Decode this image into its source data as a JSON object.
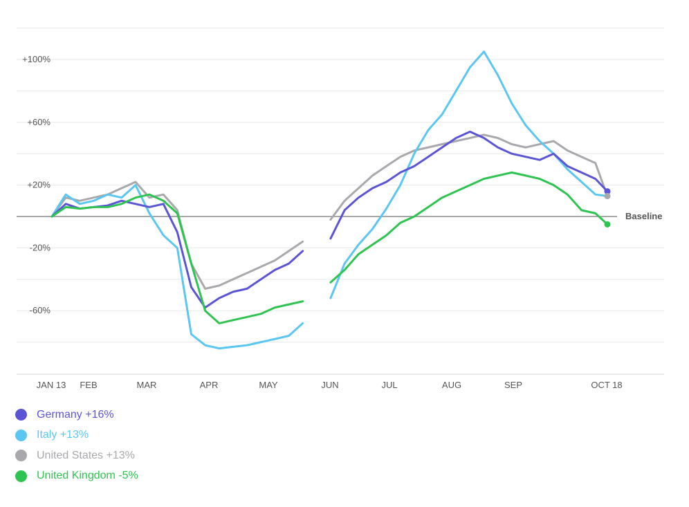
{
  "chart_data": {
    "type": "line",
    "x_tick_labels": [
      "JAN 13",
      "FEB",
      "MAR",
      "APR",
      "MAY",
      "JUN",
      "JUL",
      "AUG",
      "SEP",
      "OCT 18"
    ],
    "y_ticks": [
      {
        "value": 100,
        "label": "+100%"
      },
      {
        "value": 60,
        "label": "+60%"
      },
      {
        "value": 20,
        "label": "+20%"
      },
      {
        "value": -20,
        "label": "-20%"
      },
      {
        "value": -60,
        "label": "-60%"
      }
    ],
    "ylim": [
      -100,
      122
    ],
    "baseline": {
      "value": 0,
      "label": "Baseline"
    },
    "grid": true,
    "legend_position": "bottom-left",
    "series": [
      {
        "name": "Germany",
        "legend_label": "Germany +16%",
        "color": "#5b55d6",
        "end_value": 16,
        "points": [
          [
            "2020-01-13",
            0
          ],
          [
            "2020-01-20",
            8
          ],
          [
            "2020-01-27",
            5
          ],
          [
            "2020-02-03",
            6
          ],
          [
            "2020-02-10",
            7
          ],
          [
            "2020-02-17",
            10
          ],
          [
            "2020-02-24",
            8
          ],
          [
            "2020-03-02",
            6
          ],
          [
            "2020-03-09",
            8
          ],
          [
            "2020-03-16",
            -10
          ],
          [
            "2020-03-23",
            -45
          ],
          [
            "2020-03-30",
            -58
          ],
          [
            "2020-04-06",
            -52
          ],
          [
            "2020-04-13",
            -48
          ],
          [
            "2020-04-20",
            -46
          ],
          [
            "2020-04-27",
            -40
          ],
          [
            "2020-05-04",
            -34
          ],
          [
            "2020-05-11",
            -30
          ],
          [
            "2020-05-18",
            -22
          ],
          [
            "2020-05-25",
            null
          ],
          [
            "2020-06-01",
            -14
          ],
          [
            "2020-06-08",
            4
          ],
          [
            "2020-06-15",
            12
          ],
          [
            "2020-06-22",
            18
          ],
          [
            "2020-06-29",
            22
          ],
          [
            "2020-07-06",
            28
          ],
          [
            "2020-07-13",
            32
          ],
          [
            "2020-07-20",
            38
          ],
          [
            "2020-07-27",
            44
          ],
          [
            "2020-08-03",
            50
          ],
          [
            "2020-08-10",
            54
          ],
          [
            "2020-08-17",
            50
          ],
          [
            "2020-08-24",
            44
          ],
          [
            "2020-08-31",
            40
          ],
          [
            "2020-09-07",
            38
          ],
          [
            "2020-09-14",
            36
          ],
          [
            "2020-09-21",
            40
          ],
          [
            "2020-09-28",
            32
          ],
          [
            "2020-10-05",
            28
          ],
          [
            "2020-10-12",
            24
          ],
          [
            "2020-10-18",
            16
          ]
        ]
      },
      {
        "name": "Italy",
        "legend_label": "Italy +13%",
        "color": "#5bc6f2",
        "end_value": 13,
        "points": [
          [
            "2020-01-13",
            0
          ],
          [
            "2020-01-20",
            14
          ],
          [
            "2020-01-27",
            8
          ],
          [
            "2020-02-03",
            10
          ],
          [
            "2020-02-10",
            14
          ],
          [
            "2020-02-17",
            12
          ],
          [
            "2020-02-24",
            20
          ],
          [
            "2020-03-02",
            2
          ],
          [
            "2020-03-09",
            -12
          ],
          [
            "2020-03-16",
            -20
          ],
          [
            "2020-03-23",
            -75
          ],
          [
            "2020-03-30",
            -82
          ],
          [
            "2020-04-06",
            -84
          ],
          [
            "2020-04-13",
            -83
          ],
          [
            "2020-04-20",
            -82
          ],
          [
            "2020-04-27",
            -80
          ],
          [
            "2020-05-04",
            -78
          ],
          [
            "2020-05-11",
            -76
          ],
          [
            "2020-05-18",
            -68
          ],
          [
            "2020-05-25",
            null
          ],
          [
            "2020-06-01",
            -52
          ],
          [
            "2020-06-08",
            -30
          ],
          [
            "2020-06-15",
            -18
          ],
          [
            "2020-06-22",
            -8
          ],
          [
            "2020-06-29",
            5
          ],
          [
            "2020-07-06",
            20
          ],
          [
            "2020-07-13",
            40
          ],
          [
            "2020-07-20",
            55
          ],
          [
            "2020-07-27",
            65
          ],
          [
            "2020-08-03",
            80
          ],
          [
            "2020-08-10",
            95
          ],
          [
            "2020-08-17",
            105
          ],
          [
            "2020-08-24",
            90
          ],
          [
            "2020-08-31",
            72
          ],
          [
            "2020-09-07",
            58
          ],
          [
            "2020-09-14",
            48
          ],
          [
            "2020-09-21",
            40
          ],
          [
            "2020-09-28",
            30
          ],
          [
            "2020-10-05",
            22
          ],
          [
            "2020-10-12",
            14
          ],
          [
            "2020-10-18",
            13
          ]
        ]
      },
      {
        "name": "United States",
        "legend_label": "United States +13%",
        "color": "#a9a9ad",
        "end_value": 13,
        "points": [
          [
            "2020-01-13",
            0
          ],
          [
            "2020-01-20",
            12
          ],
          [
            "2020-01-27",
            10
          ],
          [
            "2020-02-03",
            12
          ],
          [
            "2020-02-10",
            14
          ],
          [
            "2020-02-17",
            18
          ],
          [
            "2020-02-24",
            22
          ],
          [
            "2020-03-02",
            12
          ],
          [
            "2020-03-09",
            14
          ],
          [
            "2020-03-16",
            4
          ],
          [
            "2020-03-23",
            -30
          ],
          [
            "2020-03-30",
            -46
          ],
          [
            "2020-04-06",
            -44
          ],
          [
            "2020-04-13",
            -40
          ],
          [
            "2020-04-20",
            -36
          ],
          [
            "2020-04-27",
            -32
          ],
          [
            "2020-05-04",
            -28
          ],
          [
            "2020-05-11",
            -22
          ],
          [
            "2020-05-18",
            -16
          ],
          [
            "2020-05-25",
            null
          ],
          [
            "2020-06-01",
            -2
          ],
          [
            "2020-06-08",
            10
          ],
          [
            "2020-06-15",
            18
          ],
          [
            "2020-06-22",
            26
          ],
          [
            "2020-06-29",
            32
          ],
          [
            "2020-07-06",
            38
          ],
          [
            "2020-07-13",
            42
          ],
          [
            "2020-07-20",
            44
          ],
          [
            "2020-07-27",
            46
          ],
          [
            "2020-08-03",
            48
          ],
          [
            "2020-08-10",
            50
          ],
          [
            "2020-08-17",
            52
          ],
          [
            "2020-08-24",
            50
          ],
          [
            "2020-08-31",
            46
          ],
          [
            "2020-09-07",
            44
          ],
          [
            "2020-09-14",
            46
          ],
          [
            "2020-09-21",
            48
          ],
          [
            "2020-09-28",
            42
          ],
          [
            "2020-10-05",
            38
          ],
          [
            "2020-10-12",
            34
          ],
          [
            "2020-10-18",
            13
          ]
        ]
      },
      {
        "name": "United Kingdom",
        "legend_label": "United Kingdom -5%",
        "color": "#2fc452",
        "end_value": -5,
        "points": [
          [
            "2020-01-13",
            0
          ],
          [
            "2020-01-20",
            6
          ],
          [
            "2020-01-27",
            5
          ],
          [
            "2020-02-03",
            6
          ],
          [
            "2020-02-10",
            6
          ],
          [
            "2020-02-17",
            8
          ],
          [
            "2020-02-24",
            12
          ],
          [
            "2020-03-02",
            14
          ],
          [
            "2020-03-09",
            10
          ],
          [
            "2020-03-16",
            2
          ],
          [
            "2020-03-23",
            -30
          ],
          [
            "2020-03-30",
            -60
          ],
          [
            "2020-04-06",
            -68
          ],
          [
            "2020-04-13",
            -66
          ],
          [
            "2020-04-20",
            -64
          ],
          [
            "2020-04-27",
            -62
          ],
          [
            "2020-05-04",
            -58
          ],
          [
            "2020-05-11",
            -56
          ],
          [
            "2020-05-18",
            -54
          ],
          [
            "2020-05-25",
            null
          ],
          [
            "2020-06-01",
            -42
          ],
          [
            "2020-06-08",
            -34
          ],
          [
            "2020-06-15",
            -24
          ],
          [
            "2020-06-22",
            -18
          ],
          [
            "2020-06-29",
            -12
          ],
          [
            "2020-07-06",
            -4
          ],
          [
            "2020-07-13",
            0
          ],
          [
            "2020-07-20",
            6
          ],
          [
            "2020-07-27",
            12
          ],
          [
            "2020-08-03",
            16
          ],
          [
            "2020-08-10",
            20
          ],
          [
            "2020-08-17",
            24
          ],
          [
            "2020-08-24",
            26
          ],
          [
            "2020-08-31",
            28
          ],
          [
            "2020-09-07",
            26
          ],
          [
            "2020-09-14",
            24
          ],
          [
            "2020-09-21",
            20
          ],
          [
            "2020-09-28",
            14
          ],
          [
            "2020-10-05",
            4
          ],
          [
            "2020-10-12",
            2
          ],
          [
            "2020-10-18",
            -5
          ]
        ]
      }
    ]
  }
}
